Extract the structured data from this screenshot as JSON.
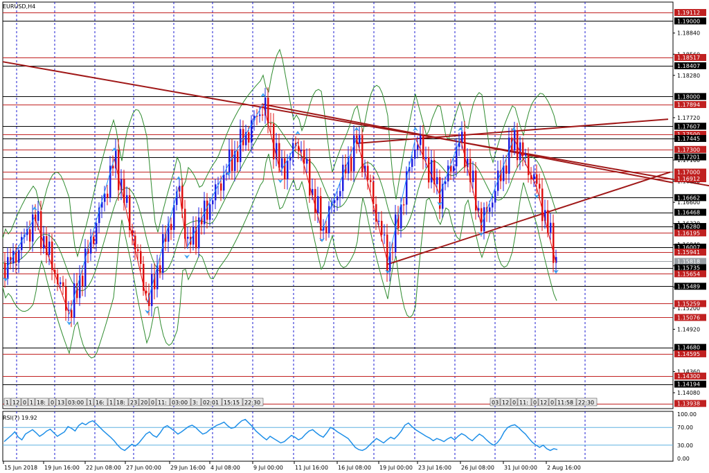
{
  "window": {
    "title": "EURUSD,H4"
  },
  "colors": {
    "bull": "#1d1de0",
    "bear": "#e01010",
    "bb": "#2e8b2e",
    "zigzag_up": "#1e90ff",
    "zigzag_down": "#e01010",
    "level_black": "#000000",
    "level_red": "#c02020",
    "trend": "#a01818",
    "rsi": "#1e8fe8",
    "grid": "#1a1ad0"
  },
  "price_axis": {
    "min": 1.1387,
    "max": 1.1925,
    "ticks": [
      "1.18840",
      "1.18560",
      "1.18280",
      "1.17720",
      "1.17440",
      "1.17160",
      "1.16880",
      "1.16600",
      "1.16320",
      "1.16040",
      "1.15760",
      "1.15480",
      "1.15200",
      "1.14920",
      "1.14640",
      "1.14360",
      "1.14080"
    ]
  },
  "levels": [
    {
      "value": "1.19112",
      "color": "red"
    },
    {
      "value": "1.19000",
      "color": "black"
    },
    {
      "value": "1.18517",
      "color": "red"
    },
    {
      "value": "1.18407",
      "color": "black"
    },
    {
      "value": "1.18000",
      "color": "black"
    },
    {
      "value": "1.17894",
      "color": "red"
    },
    {
      "value": "1.17607",
      "color": "black"
    },
    {
      "value": "1.17500",
      "color": "red"
    },
    {
      "value": "1.17445",
      "color": "black"
    },
    {
      "value": "1.17300",
      "color": "red"
    },
    {
      "value": "1.17201",
      "color": "black"
    },
    {
      "value": "1.17000",
      "color": "red"
    },
    {
      "value": "1.16912",
      "color": "red"
    },
    {
      "value": "1.16662",
      "color": "black"
    },
    {
      "value": "1.16468",
      "color": "black"
    },
    {
      "value": "1.16280",
      "color": "black"
    },
    {
      "value": "1.16195",
      "color": "red"
    },
    {
      "value": "1.16007",
      "color": "black"
    },
    {
      "value": "1.15941",
      "color": "red"
    },
    {
      "value": "1.15818",
      "color": "gray"
    },
    {
      "value": "1.15735",
      "color": "black"
    },
    {
      "value": "1.15654",
      "color": "red"
    },
    {
      "value": "1.15489",
      "color": "black"
    },
    {
      "value": "1.15259",
      "color": "red"
    },
    {
      "value": "1.15076",
      "color": "red"
    },
    {
      "value": "1.14680",
      "color": "black"
    },
    {
      "value": "1.14595",
      "color": "red"
    },
    {
      "value": "1.14300",
      "color": "red"
    },
    {
      "value": "1.14194",
      "color": "black"
    },
    {
      "value": "1.13938",
      "color": "red"
    }
  ],
  "vlines": [
    24,
    79,
    137,
    193,
    251,
    307,
    365,
    424,
    482,
    540,
    599,
    657,
    715,
    773,
    845
  ],
  "time_labels": [
    "15 Jun 2018",
    "19 Jun 16:00",
    "22 Jun 08:00",
    "27 Jun 00:00",
    "29 Jun 16:00",
    "4 Jul 08:00",
    "9 Jul 00:00",
    "11 Jul 16:00",
    "16 Jul 08:00",
    "19 Jul 00:00",
    "23 Jul 16:00",
    "26 Jul 08:00",
    "31 Jul 00:00",
    "2 Aug 16:00"
  ],
  "session_tags_left": [
    "1",
    "12",
    "0",
    "1",
    "18:",
    "0",
    "13",
    "03:00",
    "1",
    "16:",
    "1",
    "18:",
    "23",
    "20",
    "0",
    "11:",
    "03:00",
    "3:",
    "02:01",
    "15:15",
    "22:30"
  ],
  "session_tags_right": [
    "03",
    "12",
    "0",
    "11:",
    "0",
    "12",
    "0",
    "11:58",
    "22:30"
  ],
  "rsi": {
    "label": "RSI(7) 19.92",
    "levels": [
      "100.00",
      "70.00",
      "30.00",
      "0.00"
    ],
    "values": [
      38,
      45,
      52,
      60,
      48,
      42,
      55,
      60,
      65,
      58,
      50,
      55,
      62,
      66,
      58,
      50,
      55,
      60,
      72,
      68,
      62,
      74,
      80,
      76,
      82,
      85,
      78,
      70,
      62,
      55,
      48,
      40,
      30,
      22,
      18,
      25,
      32,
      28,
      35,
      45,
      55,
      60,
      52,
      48,
      58,
      70,
      74,
      68,
      62,
      55,
      60,
      66,
      72,
      75,
      70,
      62,
      55,
      58,
      65,
      70,
      75,
      78,
      82,
      74,
      68,
      70,
      78,
      85,
      88,
      80,
      72,
      62,
      55,
      48,
      42,
      50,
      45,
      40,
      35,
      38,
      45,
      52,
      48,
      42,
      46,
      55,
      62,
      65,
      58,
      52,
      48,
      58,
      70,
      66,
      60,
      55,
      50,
      45,
      35,
      25,
      20,
      18,
      22,
      30,
      38,
      45,
      40,
      35,
      42,
      48,
      44,
      52,
      62,
      75,
      80,
      72,
      65,
      60,
      55,
      50,
      46,
      40,
      45,
      42,
      38,
      44,
      48,
      42,
      50,
      56,
      52,
      45,
      40,
      48,
      55,
      50,
      42,
      35,
      30,
      35,
      45,
      60,
      70,
      74,
      76,
      70,
      62,
      55,
      45,
      36,
      30,
      25,
      30,
      22,
      18,
      22,
      20
    ]
  }
}
